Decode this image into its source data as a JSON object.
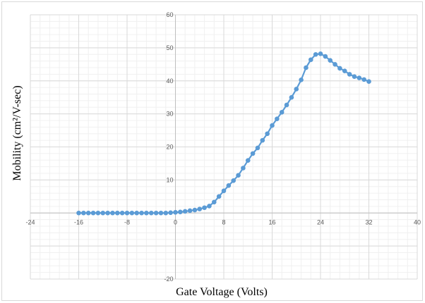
{
  "chart_data": {
    "type": "line",
    "title": "",
    "xlabel": "Gate Voltage (Volts)",
    "ylabel": "Mobility (cm²/V-sec)",
    "xlim": [
      -24,
      40
    ],
    "ylim": [
      -20,
      60
    ],
    "x_ticks": [
      -24,
      -16,
      -8,
      0,
      8,
      16,
      24,
      32,
      40
    ],
    "y_ticks": [
      -20,
      10,
      20,
      30,
      40,
      50,
      60
    ],
    "x_tick_labels": [
      "-24",
      "-16",
      "-8",
      "0",
      "8",
      "16",
      "24",
      "32",
      "40"
    ],
    "y_tick_labels": [
      "-20",
      "10",
      "20",
      "30",
      "40",
      "50",
      "60"
    ],
    "grid": true,
    "minor_grid": true,
    "legend": "none",
    "series": [
      {
        "color": "#5b9bd5",
        "marker": "circle",
        "x": [
          -16,
          -15.2,
          -14.4,
          -13.6,
          -12.8,
          -12,
          -11.2,
          -10.4,
          -9.6,
          -8.8,
          -8,
          -7.2,
          -6.4,
          -5.6,
          -4.8,
          -4,
          -3.2,
          -2.4,
          -1.6,
          -0.8,
          0,
          0.8,
          1.6,
          2.4,
          3.2,
          4,
          4.8,
          5.6,
          6.4,
          7.2,
          8,
          8.8,
          9.6,
          10.4,
          11.2,
          12,
          12.8,
          13.6,
          14.4,
          15.2,
          16,
          16.8,
          17.6,
          18.4,
          19.2,
          20,
          20.8,
          21.6,
          22.4,
          23.2,
          24,
          24.8,
          25.6,
          26.4,
          27.2,
          28,
          28.8,
          29.6,
          30.4,
          31.2,
          32
        ],
        "y": [
          0,
          0,
          0,
          0,
          0,
          0,
          0,
          0,
          0,
          0,
          0,
          0,
          0,
          0,
          0,
          0,
          0,
          0,
          0,
          0.1,
          0.2,
          0.3,
          0.5,
          0.7,
          0.9,
          1.2,
          1.6,
          2.1,
          3.3,
          5,
          6.7,
          8.3,
          9.8,
          11.4,
          13.6,
          15.9,
          18,
          19.7,
          22,
          24,
          26.5,
          28.5,
          30.5,
          32.7,
          35,
          37.5,
          40.3,
          44,
          46.4,
          48,
          48.2,
          47.4,
          46.2,
          45,
          43.8,
          43,
          42,
          41.3,
          40.9,
          40.4,
          39.8
        ]
      }
    ]
  }
}
